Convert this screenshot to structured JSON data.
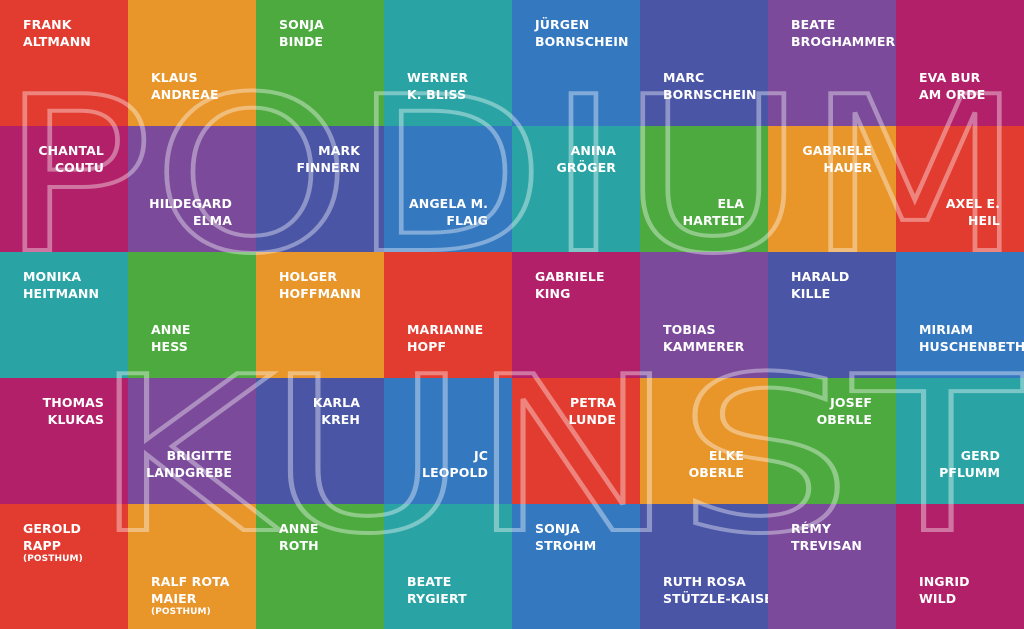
{
  "watermark": {
    "line1": "PODIUM",
    "line2": "KUNST"
  },
  "colors": {
    "red": "#e23b2f",
    "orange": "#e8952a",
    "green": "#4caa3f",
    "teal": "#2aa3a4",
    "blue": "#3478c0",
    "indigo": "#4a55a6",
    "purple": "#7b4a9a",
    "magenta": "#b3206a"
  },
  "artists": [
    {
      "lines": [
        "FRANK",
        "ALTMANN"
      ],
      "note": "",
      "color": "#e23b2f",
      "pos": "top",
      "align": "left"
    },
    {
      "lines": [
        "KLAUS",
        "ANDREAE"
      ],
      "note": "",
      "color": "#e8952a",
      "pos": "bottom",
      "align": "left"
    },
    {
      "lines": [
        "SONJA",
        "BINDE"
      ],
      "note": "",
      "color": "#4caa3f",
      "pos": "top",
      "align": "left"
    },
    {
      "lines": [
        "WERNER",
        "K. BLISS"
      ],
      "note": "",
      "color": "#2aa3a4",
      "pos": "bottom",
      "align": "left"
    },
    {
      "lines": [
        "JÜRGEN",
        "BORNSCHEIN"
      ],
      "note": "",
      "color": "#3478c0",
      "pos": "top",
      "align": "left"
    },
    {
      "lines": [
        "MARC",
        "BORNSCHEIN"
      ],
      "note": "",
      "color": "#4a55a6",
      "pos": "bottom",
      "align": "left"
    },
    {
      "lines": [
        "BEATE",
        "BROGHAMMER"
      ],
      "note": "",
      "color": "#7b4a9a",
      "pos": "top",
      "align": "left"
    },
    {
      "lines": [
        "EVA BUR",
        "AM ORDE"
      ],
      "note": "",
      "color": "#b3206a",
      "pos": "bottom",
      "align": "left"
    },
    {
      "lines": [
        "CHANTAL",
        "COUTU"
      ],
      "note": "",
      "color": "#b3206a",
      "pos": "top",
      "align": "right"
    },
    {
      "lines": [
        "HILDEGARD",
        "ELMA"
      ],
      "note": "",
      "color": "#7b4a9a",
      "pos": "bottom",
      "align": "right"
    },
    {
      "lines": [
        "MARK",
        "FINNERN"
      ],
      "note": "",
      "color": "#4a55a6",
      "pos": "top",
      "align": "right"
    },
    {
      "lines": [
        "ANGELA M.",
        "FLAIG"
      ],
      "note": "",
      "color": "#3478c0",
      "pos": "bottom",
      "align": "right"
    },
    {
      "lines": [
        "ANINA",
        "GRÖGER"
      ],
      "note": "",
      "color": "#2aa3a4",
      "pos": "top",
      "align": "right"
    },
    {
      "lines": [
        "ELA",
        "HARTELT"
      ],
      "note": "",
      "color": "#4caa3f",
      "pos": "bottom",
      "align": "right"
    },
    {
      "lines": [
        "GABRIELE",
        "HAUER"
      ],
      "note": "",
      "color": "#e8952a",
      "pos": "top",
      "align": "right"
    },
    {
      "lines": [
        "AXEL E.",
        "HEIL"
      ],
      "note": "",
      "color": "#e23b2f",
      "pos": "bottom",
      "align": "right"
    },
    {
      "lines": [
        "MONIKA",
        "HEITMANN"
      ],
      "note": "",
      "color": "#2aa3a4",
      "pos": "top",
      "align": "left"
    },
    {
      "lines": [
        "ANNE",
        "HESS"
      ],
      "note": "",
      "color": "#4caa3f",
      "pos": "bottom",
      "align": "left"
    },
    {
      "lines": [
        "HOLGER",
        "HOFFMANN"
      ],
      "note": "",
      "color": "#e8952a",
      "pos": "top",
      "align": "left"
    },
    {
      "lines": [
        "MARIANNE",
        "HOPF"
      ],
      "note": "",
      "color": "#e23b2f",
      "pos": "bottom",
      "align": "left"
    },
    {
      "lines": [
        "GABRIELE",
        "KING"
      ],
      "note": "",
      "color": "#b3206a",
      "pos": "top",
      "align": "left"
    },
    {
      "lines": [
        "TOBIAS",
        "KAMMERER"
      ],
      "note": "",
      "color": "#7b4a9a",
      "pos": "bottom",
      "align": "left"
    },
    {
      "lines": [
        "HARALD",
        "KILLE"
      ],
      "note": "",
      "color": "#4a55a6",
      "pos": "top",
      "align": "left"
    },
    {
      "lines": [
        "MIRIAM",
        "HUSCHENBETH"
      ],
      "note": "",
      "color": "#3478c0",
      "pos": "bottom",
      "align": "left"
    },
    {
      "lines": [
        "THOMAS",
        "KLUKAS"
      ],
      "note": "",
      "color": "#b3206a",
      "pos": "top",
      "align": "right"
    },
    {
      "lines": [
        "BRIGITTE",
        "LANDGREBE"
      ],
      "note": "",
      "color": "#7b4a9a",
      "pos": "bottom",
      "align": "right"
    },
    {
      "lines": [
        "KARLA",
        "KREH"
      ],
      "note": "",
      "color": "#4a55a6",
      "pos": "top",
      "align": "right"
    },
    {
      "lines": [
        "JC",
        "LEOPOLD"
      ],
      "note": "",
      "color": "#3478c0",
      "pos": "bottom",
      "align": "right"
    },
    {
      "lines": [
        "PETRA",
        "LUNDE"
      ],
      "note": "",
      "color": "#e23b2f",
      "pos": "top",
      "align": "right"
    },
    {
      "lines": [
        "ELKE",
        "OBERLE"
      ],
      "note": "",
      "color": "#e8952a",
      "pos": "bottom",
      "align": "right"
    },
    {
      "lines": [
        "JOSEF",
        "OBERLE"
      ],
      "note": "",
      "color": "#4caa3f",
      "pos": "top",
      "align": "right"
    },
    {
      "lines": [
        "GERD",
        "PFLUMM"
      ],
      "note": "",
      "color": "#2aa3a4",
      "pos": "bottom",
      "align": "right"
    },
    {
      "lines": [
        "GEROLD",
        "RAPP"
      ],
      "note": "(POSTHUM)",
      "color": "#e23b2f",
      "pos": "top",
      "align": "left"
    },
    {
      "lines": [
        "RALF ROTA",
        "MAIER"
      ],
      "note": "(POSTHUM)",
      "color": "#e8952a",
      "pos": "bottom",
      "align": "left"
    },
    {
      "lines": [
        "ANNE",
        "ROTH"
      ],
      "note": "",
      "color": "#4caa3f",
      "pos": "top",
      "align": "left"
    },
    {
      "lines": [
        "BEATE",
        "RYGIERT"
      ],
      "note": "",
      "color": "#2aa3a4",
      "pos": "bottom",
      "align": "left"
    },
    {
      "lines": [
        "SONJA",
        "STROHM"
      ],
      "note": "",
      "color": "#3478c0",
      "pos": "top",
      "align": "left"
    },
    {
      "lines": [
        "RUTH ROSA",
        "STÜTZLE-KAISER"
      ],
      "note": "",
      "color": "#4a55a6",
      "pos": "bottom",
      "align": "left"
    },
    {
      "lines": [
        "RÉMY",
        "TREVISAN"
      ],
      "note": "",
      "color": "#7b4a9a",
      "pos": "top",
      "align": "left"
    },
    {
      "lines": [
        "INGRID",
        "WILD"
      ],
      "note": "",
      "color": "#b3206a",
      "pos": "bottom",
      "align": "left"
    }
  ]
}
